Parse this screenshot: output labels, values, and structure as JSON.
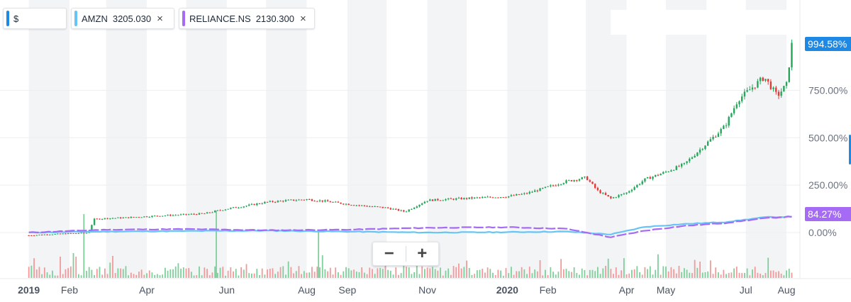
{
  "legend": {
    "chips": [
      {
        "id": "main",
        "symbol": "$",
        "price": "",
        "color": "#1e88e5",
        "closable": false
      },
      {
        "id": "amzn",
        "symbol": "AMZN",
        "price": "3205.030",
        "color": "#67c5f5",
        "closable": true
      },
      {
        "id": "reliance",
        "symbol": "RELIANCE.NS",
        "price": "2130.300",
        "color": "#a66bf5",
        "closable": true
      }
    ],
    "close_glyph": "×"
  },
  "zoom": {
    "minus": "−",
    "plus": "+"
  },
  "chart_data": {
    "type": "line",
    "xlabel": "",
    "ylabel": "",
    "x_ticks": [
      "2019",
      "Feb",
      "Apr",
      "Jun",
      "Aug",
      "Sep",
      "Nov",
      "2020",
      "Feb",
      "Apr",
      "May",
      "Jul",
      "Aug"
    ],
    "x_ticks_bold": [
      "2019",
      "2020"
    ],
    "y_ticks": [
      "750.00%",
      "500.00%",
      "250.00%",
      "0.00%"
    ],
    "ylim": [
      -30,
      1150
    ],
    "y_unit": "% change",
    "grid": true,
    "series": [
      {
        "id": "main",
        "style": "candlestick",
        "up_color": "#26a65b",
        "down_color": "#e53935",
        "last_value_label": "994.58%",
        "label_color": "#1e88e5",
        "x": [
          "2019-01-01",
          "2019-01-15",
          "2019-02-01",
          "2019-02-15",
          "2019-02-20",
          "2019-03-01",
          "2019-03-15",
          "2019-04-01",
          "2019-04-15",
          "2019-05-01",
          "2019-05-15",
          "2019-05-25",
          "2019-06-01",
          "2019-06-15",
          "2019-07-01",
          "2019-07-15",
          "2019-08-01",
          "2019-08-15",
          "2019-09-01",
          "2019-09-15",
          "2019-10-01",
          "2019-10-15",
          "2019-11-01",
          "2019-11-15",
          "2019-12-01",
          "2019-12-15",
          "2020-01-01",
          "2020-01-15",
          "2020-02-01",
          "2020-02-15",
          "2020-03-01",
          "2020-03-10",
          "2020-03-20",
          "2020-04-01",
          "2020-04-15",
          "2020-05-01",
          "2020-05-15",
          "2020-06-01",
          "2020-06-15",
          "2020-06-25",
          "2020-07-05",
          "2020-07-15",
          "2020-07-25",
          "2020-08-01",
          "2020-08-05"
        ],
        "values": [
          -15,
          -10,
          -5,
          -2,
          70,
          75,
          78,
          85,
          90,
          95,
          100,
          115,
          125,
          140,
          160,
          168,
          175,
          165,
          150,
          140,
          130,
          110,
          170,
          175,
          180,
          185,
          190,
          205,
          240,
          270,
          290,
          220,
          180,
          210,
          280,
          320,
          360,
          470,
          560,
          700,
          760,
          820,
          720,
          780,
          990
        ]
      },
      {
        "id": "amzn",
        "style": "line",
        "color": "#67c5f5",
        "x": [
          "2019-01-01",
          "2019-03-01",
          "2019-05-01",
          "2019-07-01",
          "2019-09-01",
          "2019-11-01",
          "2020-01-01",
          "2020-02-15",
          "2020-03-20",
          "2020-04-15",
          "2020-05-15",
          "2020-06-15",
          "2020-07-15",
          "2020-08-05"
        ],
        "values": [
          0,
          5,
          8,
          10,
          5,
          0,
          2,
          5,
          -10,
          30,
          45,
          55,
          80,
          84
        ]
      },
      {
        "id": "reliance",
        "style": "dashed-line",
        "color": "#a66bf5",
        "last_value_label": "84.27%",
        "label_color": "#a66bf5",
        "x": [
          "2019-01-01",
          "2019-03-01",
          "2019-05-01",
          "2019-07-01",
          "2019-09-01",
          "2019-11-01",
          "2020-01-01",
          "2020-02-15",
          "2020-03-20",
          "2020-04-15",
          "2020-05-15",
          "2020-06-15",
          "2020-07-15",
          "2020-08-05"
        ],
        "values": [
          0,
          15,
          18,
          12,
          15,
          25,
          28,
          20,
          -25,
          10,
          35,
          50,
          75,
          84
        ]
      }
    ],
    "volume": {
      "up_color": "#7fcf9b",
      "down_color": "#f29a9a",
      "spikes": [
        {
          "x": "2019-02-12",
          "value": 90
        },
        {
          "x": "2019-05-24",
          "value": 95
        },
        {
          "x": "2019-08-10",
          "value": 65
        }
      ]
    }
  }
}
